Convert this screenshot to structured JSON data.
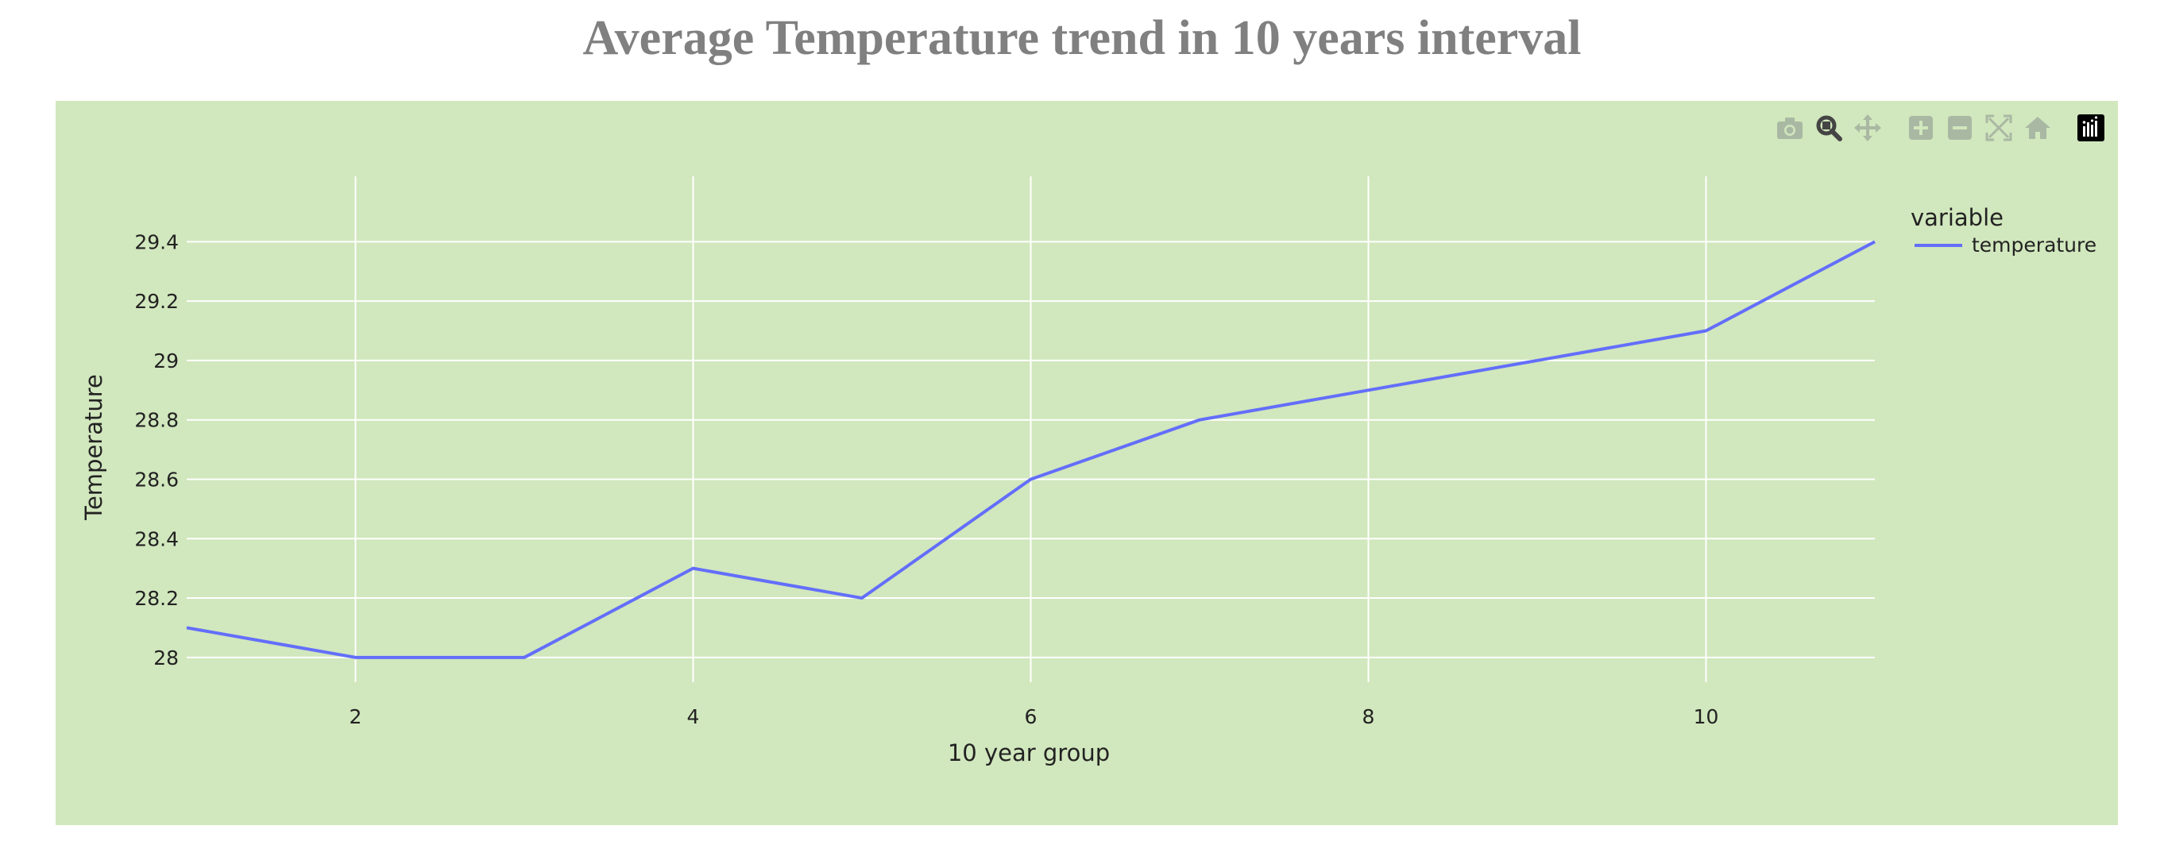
{
  "chart_data": {
    "type": "line",
    "title": "Average Temperature trend in 10 years interval",
    "xlabel": "10 year group",
    "ylabel": "Temperature",
    "x": [
      1,
      2,
      3,
      4,
      5,
      6,
      7,
      8,
      9,
      10,
      11
    ],
    "xlim": [
      1,
      11
    ],
    "ylim": [
      27.93,
      29.54
    ],
    "x_ticks": [
      2,
      4,
      6,
      8,
      10
    ],
    "x_tick_labels": [
      "2",
      "4",
      "6",
      "8",
      "10"
    ],
    "y_ticks": [
      28,
      28.2,
      28.4,
      28.6,
      28.8,
      29,
      29.2,
      29.4
    ],
    "y_tick_labels": [
      "28",
      "28.2",
      "28.4",
      "28.6",
      "28.8",
      "29",
      "29.2",
      "29.4"
    ],
    "grid": true,
    "legend_title": "variable",
    "legend_position": "top-right",
    "series": [
      {
        "name": "temperature",
        "color": "#636efa",
        "values": [
          28.1,
          28.0,
          28.0,
          28.3,
          28.2,
          28.6,
          28.8,
          28.9,
          29.0,
          29.1,
          29.4
        ]
      }
    ],
    "plot_background": "#d1e7bd",
    "title_color": "#808080"
  },
  "modebar": {
    "icons": [
      "camera-icon",
      "zoom-icon",
      "pan-icon",
      "zoom-in-icon",
      "zoom-out-icon",
      "autoscale-icon",
      "reset-axes-icon",
      "plotly-logo-icon"
    ]
  }
}
